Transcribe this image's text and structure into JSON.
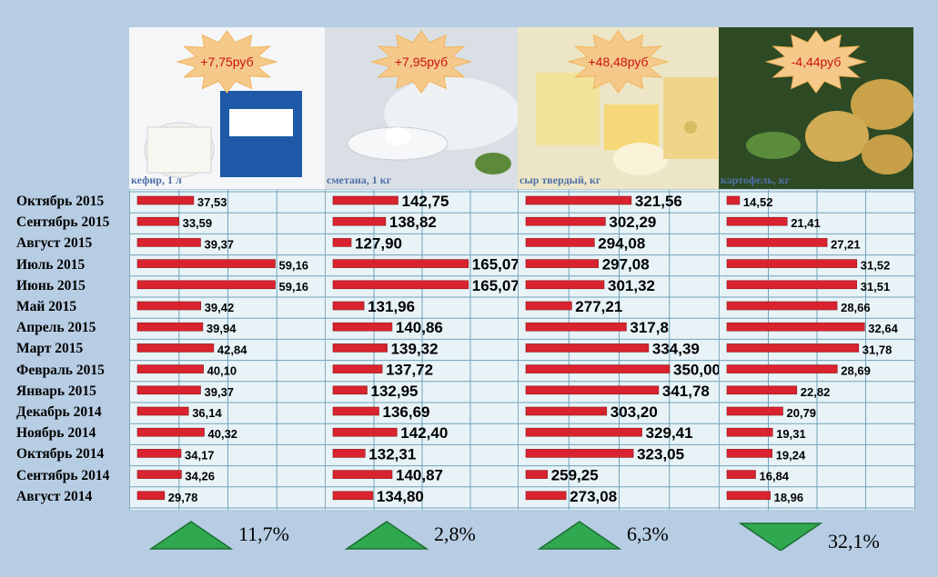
{
  "months": [
    "Октябрь 2015",
    "Сентябрь 2015",
    "Август 2015",
    "Июль 2015",
    "Июнь 2015",
    "Май 2015",
    "Апрель 2015",
    "Март 2015",
    "Февраль 2015",
    "Январь 2015",
    "Декабрь 2014",
    "Ноябрь 2014",
    "Октябрь 2014",
    "Сентябрь 2014",
    "Август 2014"
  ],
  "panels": [
    {
      "label": "кефир, 1 л",
      "change": "+7,75руб",
      "summary": "11,7%",
      "trend": "up"
    },
    {
      "label": "сметана, 1 кг",
      "change": "+7,95руб",
      "summary": "2,8%",
      "trend": "up"
    },
    {
      "label": "сыр твердый, кг",
      "change": "+48,48руб",
      "summary": "6,3%",
      "trend": "up"
    },
    {
      "label": "картофель, кг",
      "change": "-4,44руб",
      "summary": "32,1%",
      "trend": "down"
    }
  ],
  "chart_data": {
    "type": "bar",
    "orientation": "horizontal",
    "categories": [
      "Октябрь 2015",
      "Сентябрь 2015",
      "Август 2015",
      "Июль 2015",
      "Июнь 2015",
      "Май 2015",
      "Апрель 2015",
      "Март 2015",
      "Февраль 2015",
      "Январь 2015",
      "Декабрь 2014",
      "Ноябрь 2014",
      "Октябрь 2014",
      "Сентябрь 2014",
      "Август 2014"
    ],
    "series": [
      {
        "name": "кефир, 1 л",
        "values": [
          37.53,
          33.59,
          39.37,
          59.16,
          59.16,
          39.42,
          39.94,
          42.84,
          40.1,
          39.37,
          36.14,
          40.32,
          34.17,
          34.26,
          29.78
        ],
        "labels": [
          "37,53",
          "33,59",
          "39,37",
          "59,16",
          "59,16",
          "39,42",
          "39,94",
          "42,84",
          "40,10",
          "39,37",
          "36,14",
          "40,32",
          "34,17",
          "34,26",
          "29,78"
        ],
        "xlim": [
          25,
          60
        ]
      },
      {
        "name": "сметана, 1 кг",
        "values": [
          142.75,
          138.82,
          127.9,
          165.07,
          165.07,
          131.96,
          140.86,
          139.32,
          137.72,
          132.95,
          136.69,
          142.4,
          132.31,
          140.87,
          134.8
        ],
        "labels": [
          "142,75",
          "138,82",
          "127,90",
          "165,07",
          "165,07",
          "131,96",
          "140,86",
          "139,32",
          "137,72",
          "132,95",
          "136,69",
          "142,40",
          "132,31",
          "140,87",
          "134,80"
        ],
        "xlim": [
          125,
          166
        ]
      },
      {
        "name": "сыр твердый, кг",
        "values": [
          321.56,
          302.29,
          294.08,
          297.08,
          301.32,
          277.21,
          317.8,
          334.39,
          350.0,
          341.78,
          303.2,
          329.41,
          323.05,
          259.25,
          273.08
        ],
        "labels": [
          "321,56",
          "302,29",
          "294,08",
          "297,08",
          "301,32",
          "277,21",
          "317,8",
          "334,39",
          "350,00",
          "341,78",
          "303,20",
          "329,41",
          "323,05",
          "259,25",
          "273,08"
        ],
        "xlim": [
          250,
          352
        ]
      },
      {
        "name": "картофель, кг",
        "values": [
          14.52,
          21.41,
          27.21,
          31.52,
          31.51,
          28.66,
          32.64,
          31.78,
          28.69,
          22.82,
          20.79,
          19.31,
          19.24,
          16.84,
          18.96
        ],
        "labels": [
          "14,52",
          "21,41",
          "27,21",
          "31,52",
          "31,51",
          "28,66",
          "32,64",
          "31,78",
          "28,69",
          "22,82",
          "20,79",
          "19,31",
          "19,24",
          "16,84",
          "18,96"
        ],
        "xlim": [
          14,
          33
        ]
      }
    ],
    "bar_color": "#d9232f",
    "grid": true
  }
}
